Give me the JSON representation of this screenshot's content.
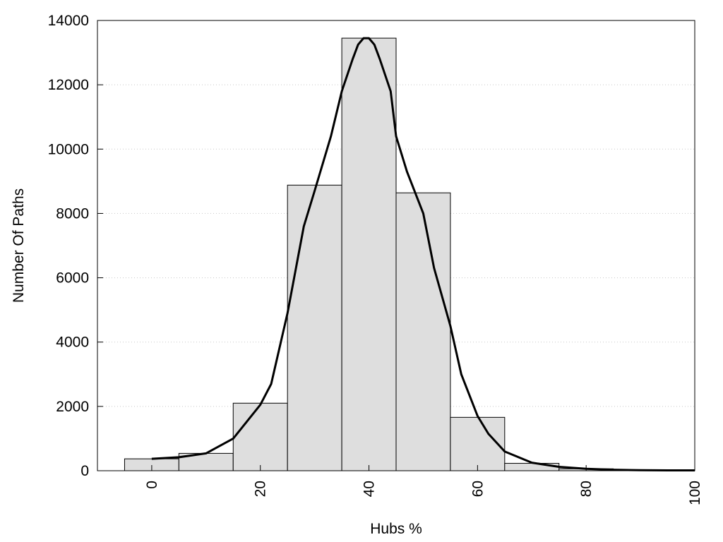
{
  "chart_data": {
    "type": "bar",
    "xlabel": "Hubs %",
    "ylabel": "Number Of Paths",
    "xlim": [
      -10,
      100
    ],
    "ylim": [
      0,
      14000
    ],
    "xticks": [
      0,
      20,
      40,
      60,
      80,
      100
    ],
    "yticks": [
      0,
      2000,
      4000,
      6000,
      8000,
      10000,
      12000,
      14000
    ],
    "grid": "horizontal dotted",
    "bin_width": 10,
    "series": [
      {
        "type": "bar",
        "x": [
          0,
          10,
          20,
          30,
          40,
          50,
          60,
          70,
          80,
          90,
          100
        ],
        "values": [
          370,
          540,
          2100,
          8880,
          13450,
          8640,
          1660,
          230,
          60,
          20,
          10
        ]
      },
      {
        "type": "line",
        "x": [
          0,
          5,
          10,
          15,
          20,
          22,
          25,
          28,
          30,
          33,
          35,
          37,
          38,
          39,
          40,
          41,
          42,
          44,
          45,
          47,
          50,
          52,
          55,
          57,
          60,
          62,
          65,
          70,
          75,
          80,
          85,
          90,
          95,
          100
        ],
        "values": [
          370,
          420,
          540,
          1000,
          2050,
          2700,
          4900,
          7600,
          8700,
          10400,
          11800,
          12800,
          13250,
          13450,
          13450,
          13250,
          12800,
          11800,
          10400,
          9300,
          8000,
          6300,
          4500,
          3000,
          1700,
          1150,
          600,
          250,
          120,
          60,
          30,
          15,
          10,
          10
        ]
      }
    ]
  }
}
